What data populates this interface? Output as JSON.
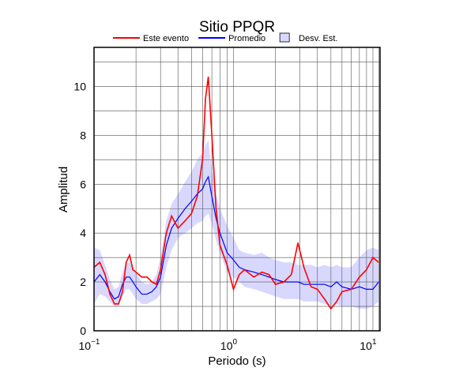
{
  "chart_data": {
    "type": "line",
    "title": "Sitio PPQR",
    "xlabel": "Periodo (s)",
    "ylabel": "Amplitud",
    "xscale": "log",
    "xlim": [
      0.1,
      11.25
    ],
    "ylim": [
      0,
      11.6
    ],
    "xticks": [
      {
        "value": 0.1,
        "label": "10",
        "exponent": "−1"
      },
      {
        "value": 1,
        "label": "10",
        "exponent": "0"
      },
      {
        "value": 10,
        "label": "10",
        "exponent": "1"
      }
    ],
    "xminor": [
      0.2,
      0.3,
      0.4,
      0.5,
      0.6,
      0.7,
      0.8,
      0.9,
      2,
      3,
      4,
      5,
      6,
      7,
      8,
      9,
      11
    ],
    "yticks": [
      0,
      2,
      4,
      6,
      8,
      10
    ],
    "yminor": [
      1,
      3,
      5,
      7,
      9,
      11
    ],
    "grid": true,
    "x": [
      0.1,
      0.11,
      0.12,
      0.13,
      0.14,
      0.15,
      0.16,
      0.17,
      0.18,
      0.19,
      0.2,
      0.22,
      0.24,
      0.26,
      0.28,
      0.3,
      0.33,
      0.36,
      0.4,
      0.45,
      0.5,
      0.55,
      0.6,
      0.63,
      0.66,
      0.7,
      0.75,
      0.8,
      0.9,
      1.0,
      1.1,
      1.2,
      1.4,
      1.6,
      1.8,
      2.0,
      2.3,
      2.6,
      2.9,
      3.2,
      3.6,
      4.0,
      4.5,
      5.0,
      5.5,
      6.0,
      7.0,
      8.0,
      9.0,
      10.0,
      11.0
    ],
    "band": {
      "name": "Desv. Est.",
      "color": "#d8d8ff",
      "lower": [
        1.1,
        1.5,
        1.4,
        1.2,
        1.0,
        1.0,
        1.4,
        1.7,
        1.7,
        1.5,
        1.3,
        1.1,
        1.1,
        1.2,
        1.3,
        1.5,
        2.6,
        3.3,
        3.8,
        4.0,
        4.2,
        4.4,
        4.5,
        4.7,
        4.8,
        4.4,
        3.7,
        3.2,
        2.4,
        2.2,
        2.0,
        1.8,
        1.7,
        1.6,
        1.5,
        1.4,
        1.3,
        1.3,
        1.3,
        1.2,
        1.2,
        1.2,
        1.1,
        1.0,
        1.1,
        1.0,
        1.0,
        0.9,
        0.9,
        1.0,
        1.2
      ],
      "upper": [
        3.4,
        3.3,
        2.7,
        2.1,
        1.7,
        1.8,
        2.4,
        2.8,
        2.8,
        2.6,
        2.4,
        2.0,
        1.9,
        2.0,
        2.3,
        3.0,
        4.5,
        5.2,
        5.6,
        6.1,
        6.5,
        7.0,
        7.3,
        7.6,
        7.8,
        6.6,
        5.6,
        5.0,
        4.3,
        3.8,
        3.3,
        3.2,
        3.1,
        3.2,
        3.0,
        2.9,
        2.8,
        2.8,
        2.7,
        2.7,
        2.7,
        2.6,
        2.7,
        2.6,
        2.7,
        2.6,
        2.6,
        3.0,
        3.3,
        3.4,
        3.3
      ]
    },
    "series": [
      {
        "name": "Este evento",
        "color": "#ff0000",
        "values": [
          2.6,
          2.8,
          2.3,
          1.5,
          1.1,
          1.1,
          1.6,
          2.8,
          3.1,
          2.5,
          2.4,
          2.2,
          2.2,
          2.0,
          1.9,
          2.5,
          4.0,
          4.7,
          4.2,
          4.5,
          4.8,
          5.5,
          7.0,
          9.5,
          10.4,
          8.0,
          5.0,
          3.5,
          2.7,
          1.7,
          2.3,
          2.5,
          2.2,
          2.4,
          2.3,
          1.9,
          2.0,
          2.3,
          3.6,
          2.6,
          1.8,
          1.7,
          1.3,
          0.9,
          1.2,
          1.6,
          1.7,
          2.2,
          2.5,
          3.0,
          2.8
        ]
      },
      {
        "name": "Promedio",
        "color": "#0000ff",
        "values": [
          2.0,
          2.3,
          2.0,
          1.6,
          1.3,
          1.4,
          1.9,
          2.2,
          2.2,
          2.0,
          1.8,
          1.5,
          1.5,
          1.6,
          1.8,
          2.2,
          3.5,
          4.2,
          4.6,
          5.0,
          5.3,
          5.6,
          5.8,
          6.1,
          6.3,
          5.5,
          4.6,
          4.0,
          3.2,
          2.9,
          2.6,
          2.5,
          2.4,
          2.3,
          2.2,
          2.1,
          2.0,
          2.0,
          2.0,
          1.9,
          1.9,
          1.9,
          1.9,
          1.8,
          2.0,
          1.8,
          1.7,
          1.8,
          1.7,
          1.7,
          2.0
        ]
      }
    ]
  }
}
